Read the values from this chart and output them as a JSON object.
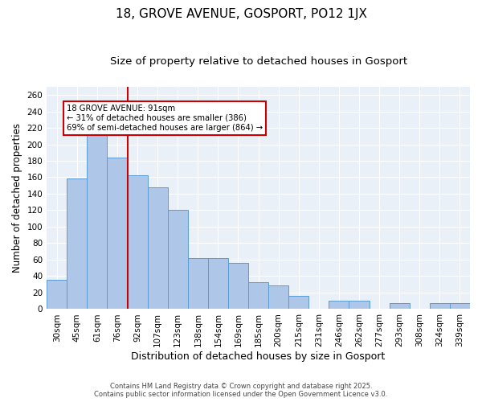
{
  "title": "18, GROVE AVENUE, GOSPORT, PO12 1JX",
  "subtitle": "Size of property relative to detached houses in Gosport",
  "xlabel": "Distribution of detached houses by size in Gosport",
  "ylabel": "Number of detached properties",
  "categories": [
    "30sqm",
    "45sqm",
    "61sqm",
    "76sqm",
    "92sqm",
    "107sqm",
    "123sqm",
    "138sqm",
    "154sqm",
    "169sqm",
    "185sqm",
    "200sqm",
    "215sqm",
    "231sqm",
    "246sqm",
    "262sqm",
    "277sqm",
    "293sqm",
    "308sqm",
    "324sqm",
    "339sqm"
  ],
  "values": [
    36,
    159,
    218,
    184,
    162,
    148,
    120,
    62,
    62,
    56,
    33,
    29,
    16,
    0,
    10,
    10,
    0,
    7,
    0,
    7,
    7
  ],
  "bar_color": "#aec6e8",
  "bar_edge_color": "#5b9bd5",
  "vline_x": 4,
  "vline_color": "#cc0000",
  "annotation_text": "18 GROVE AVENUE: 91sqm\n← 31% of detached houses are smaller (386)\n69% of semi-detached houses are larger (864) →",
  "annotation_box_color": "#ffffff",
  "annotation_box_edge_color": "#cc0000",
  "ylim": [
    0,
    270
  ],
  "yticks": [
    0,
    20,
    40,
    60,
    80,
    100,
    120,
    140,
    160,
    180,
    200,
    220,
    240,
    260
  ],
  "background_color": "#eaf0f8",
  "footer_line1": "Contains HM Land Registry data © Crown copyright and database right 2025.",
  "footer_line2": "Contains public sector information licensed under the Open Government Licence v3.0.",
  "title_fontsize": 11,
  "subtitle_fontsize": 9.5,
  "xlabel_fontsize": 9,
  "ylabel_fontsize": 8.5,
  "tick_fontsize": 7.5
}
